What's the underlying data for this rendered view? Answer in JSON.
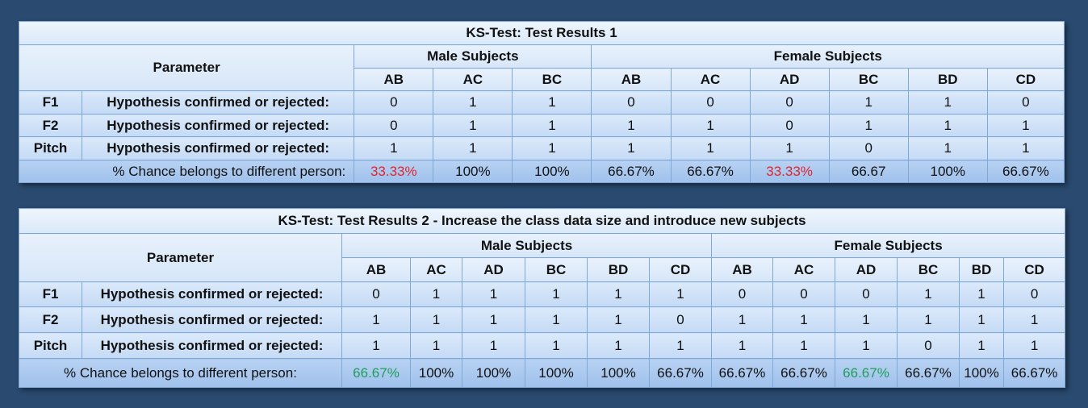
{
  "table1": {
    "title": "KS-Test: Test Results 1",
    "parameter_label": "Parameter",
    "male_label": "Male Subjects",
    "female_label": "Female Subjects",
    "male_cols": [
      "AB",
      "AC",
      "BC"
    ],
    "female_cols": [
      "AB",
      "AC",
      "AD",
      "BC",
      "BD",
      "CD"
    ],
    "rows": [
      {
        "name": "F1",
        "desc": "Hypothesis confirmed or rejected:",
        "values": [
          "0",
          "1",
          "1",
          "0",
          "0",
          "0",
          "1",
          "1",
          "0"
        ]
      },
      {
        "name": "F2",
        "desc": "Hypothesis confirmed or rejected:",
        "values": [
          "0",
          "1",
          "1",
          "1",
          "1",
          "0",
          "1",
          "1",
          "1"
        ]
      },
      {
        "name": "Pitch",
        "desc": "Hypothesis confirmed or rejected:",
        "values": [
          "1",
          "1",
          "1",
          "1",
          "1",
          "1",
          "0",
          "1",
          "1"
        ]
      }
    ],
    "chance_label": "% Chance belongs to different person:",
    "chance_values": [
      "33.33%",
      "100%",
      "100%",
      "66.67%",
      "66.67%",
      "33.33%",
      "66.67",
      "100%",
      "66.67%"
    ],
    "chance_colors": [
      "red",
      "",
      "",
      "",
      "",
      "red",
      "",
      "",
      ""
    ]
  },
  "table2": {
    "title": "KS-Test: Test Results 2 - Increase the class data size and introduce new subjects",
    "parameter_label": "Parameter",
    "male_label": "Male Subjects",
    "female_label": "Female Subjects",
    "male_cols": [
      "AB",
      "AC",
      "AD",
      "BC",
      "BD",
      "CD"
    ],
    "female_cols": [
      "AB",
      "AC",
      "AD",
      "BC",
      "BD",
      "CD"
    ],
    "rows": [
      {
        "name": "F1",
        "desc": "Hypothesis confirmed or rejected:",
        "values": [
          "0",
          "1",
          "1",
          "1",
          "1",
          "1",
          "0",
          "0",
          "0",
          "1",
          "1",
          "0"
        ]
      },
      {
        "name": "F2",
        "desc": "Hypothesis confirmed or rejected:",
        "values": [
          "1",
          "1",
          "1",
          "1",
          "1",
          "0",
          "1",
          "1",
          "1",
          "1",
          "1",
          "1"
        ]
      },
      {
        "name": "Pitch",
        "desc": "Hypothesis confirmed or rejected:",
        "values": [
          "1",
          "1",
          "1",
          "1",
          "1",
          "1",
          "1",
          "1",
          "1",
          "0",
          "1",
          "1"
        ]
      }
    ],
    "chance_label": "% Chance belongs to different person:",
    "chance_values": [
      "66.67%",
      "100%",
      "100%",
      "100%",
      "100%",
      "66.67%",
      "66.67%",
      "66.67%",
      "66.67%",
      "66.67%",
      "100%",
      "66.67%"
    ],
    "chance_colors": [
      "green",
      "",
      "",
      "",
      "",
      "",
      "",
      "",
      "green",
      "",
      "",
      ""
    ]
  }
}
